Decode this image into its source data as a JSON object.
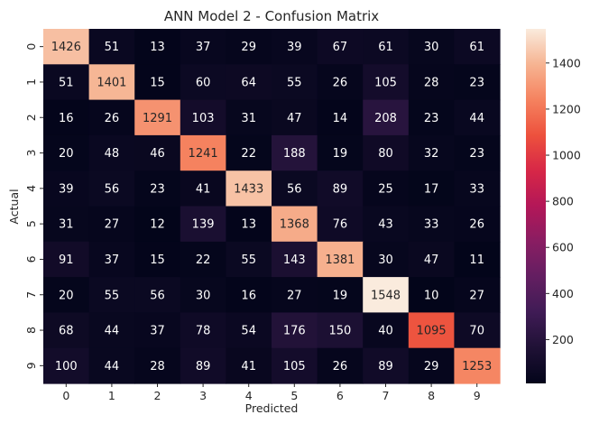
{
  "chart_data": {
    "type": "heatmap",
    "title": "ANN Model 2 - Confusion Matrix",
    "xlabel": "Predicted",
    "ylabel": "Actual",
    "x_categories": [
      "0",
      "1",
      "2",
      "3",
      "4",
      "5",
      "6",
      "7",
      "8",
      "9"
    ],
    "y_categories": [
      "0",
      "1",
      "2",
      "3",
      "4",
      "5",
      "6",
      "7",
      "8",
      "9"
    ],
    "matrix": [
      [
        1426,
        51,
        13,
        37,
        29,
        39,
        67,
        61,
        30,
        61
      ],
      [
        51,
        1401,
        15,
        60,
        64,
        55,
        26,
        105,
        28,
        23
      ],
      [
        16,
        26,
        1291,
        103,
        31,
        47,
        14,
        208,
        23,
        44
      ],
      [
        20,
        48,
        46,
        1241,
        22,
        188,
        19,
        80,
        32,
        23
      ],
      [
        39,
        56,
        23,
        41,
        1433,
        56,
        89,
        25,
        17,
        33
      ],
      [
        31,
        27,
        12,
        139,
        13,
        1368,
        76,
        43,
        33,
        26
      ],
      [
        91,
        37,
        15,
        22,
        55,
        143,
        1381,
        30,
        47,
        11
      ],
      [
        20,
        55,
        56,
        30,
        16,
        27,
        19,
        1548,
        10,
        27
      ],
      [
        68,
        44,
        37,
        78,
        54,
        176,
        150,
        40,
        1095,
        70
      ],
      [
        100,
        44,
        28,
        89,
        41,
        105,
        26,
        89,
        29,
        1253
      ]
    ],
    "colorbar": {
      "colormap": "rocket",
      "min": 10,
      "max": 1548,
      "ticks": [
        200,
        400,
        600,
        800,
        1000,
        1200,
        1400
      ]
    },
    "annotation_colors": {
      "on_dark": "#ffffff",
      "on_light": "#262626"
    },
    "grid": false
  }
}
